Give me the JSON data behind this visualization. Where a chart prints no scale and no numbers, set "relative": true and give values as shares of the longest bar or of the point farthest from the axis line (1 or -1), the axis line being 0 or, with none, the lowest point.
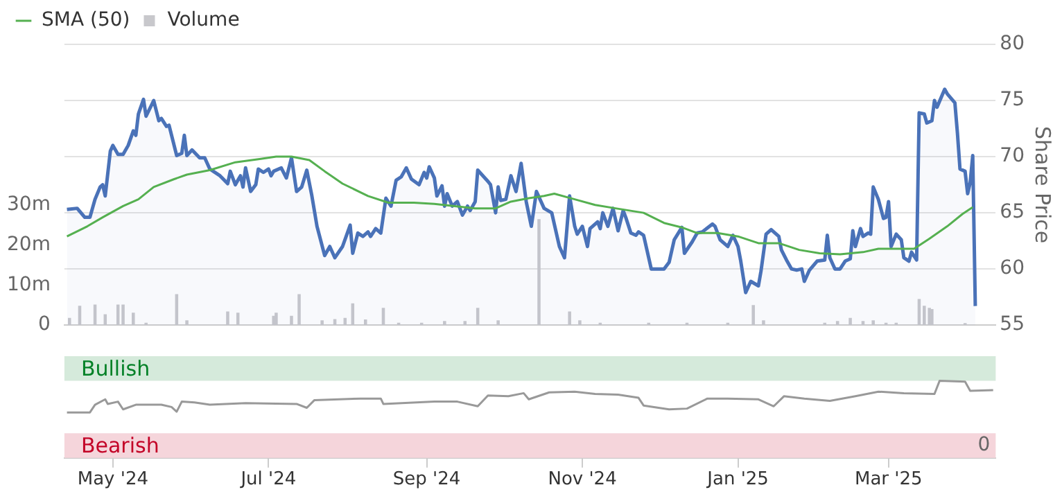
{
  "chart_data": [
    {
      "type": "area",
      "ylabel": "Share Price",
      "legend": "top left",
      "grid": "y",
      "tick_labels": "y",
      "xlim": [
        "2024-04-12",
        "2025-04-12"
      ],
      "ylim": [
        55,
        80
      ],
      "yticks": [
        55,
        60,
        65,
        70,
        75,
        80
      ],
      "y2lim": [
        0,
        70
      ],
      "y2ticks": [
        {
          "value": 0,
          "label": "0"
        },
        {
          "value": 10,
          "label": "10m"
        },
        {
          "value": 20,
          "label": "20m"
        },
        {
          "value": 30,
          "label": "30m"
        }
      ],
      "series": [
        {
          "type": "bar",
          "axis": "y2",
          "name": "Volume",
          "color": "#c8c8cc",
          "x": [
            "2024-04-14",
            "2024-04-18",
            "2024-04-24",
            "2024-04-28",
            "2024-05-03",
            "2024-05-05",
            "2024-05-09",
            "2024-05-14",
            "2024-05-26",
            "2024-05-30",
            "2024-06-15",
            "2024-06-19",
            "2024-07-03",
            "2024-07-04",
            "2024-07-10",
            "2024-07-13",
            "2024-07-22",
            "2024-07-27",
            "2024-07-31",
            "2024-08-03",
            "2024-08-08",
            "2024-08-15",
            "2024-08-21",
            "2024-08-30",
            "2024-09-08",
            "2024-09-16",
            "2024-09-21",
            "2024-09-29",
            "2024-10-15",
            "2024-10-27",
            "2024-10-31",
            "2024-11-08",
            "2024-11-27",
            "2024-12-12",
            "2024-12-28",
            "2025-01-07",
            "2025-01-11",
            "2025-02-04",
            "2025-02-09",
            "2025-02-14",
            "2025-02-19",
            "2025-02-23",
            "2025-02-28",
            "2025-03-04",
            "2025-03-13",
            "2025-03-15",
            "2025-03-17",
            "2025-03-18",
            "2025-03-31"
          ],
          "values": [
            1.7,
            4.7,
            5.0,
            2.6,
            5.0,
            5.0,
            3.0,
            0.5,
            7.6,
            1.1,
            3.3,
            3.0,
            2.2,
            3.0,
            2.2,
            7.6,
            1.1,
            1.4,
            1.7,
            5.3,
            1.3,
            4.2,
            0.5,
            0.5,
            0.9,
            0.9,
            4.2,
            1.1,
            26.3,
            3.3,
            1.1,
            0.5,
            0.5,
            0.5,
            0.5,
            4.9,
            1.1,
            0.5,
            0.9,
            1.7,
            0.9,
            1.1,
            0.5,
            0.5,
            6.4,
            4.7,
            4.2,
            3.9,
            0.4
          ]
        },
        {
          "type": "area",
          "color": "#4a72b8",
          "x": [
            "2024-04-13",
            "2024-04-17",
            "2024-04-20",
            "2024-04-22",
            "2024-04-24",
            "2024-04-26",
            "2024-04-27",
            "2024-04-28",
            "2024-04-30",
            "2024-05-01",
            "2024-05-03",
            "2024-05-05",
            "2024-05-07",
            "2024-05-09",
            "2024-05-10",
            "2024-05-11",
            "2024-05-13",
            "2024-05-14",
            "2024-05-17",
            "2024-05-19",
            "2024-05-20",
            "2024-05-22",
            "2024-05-23",
            "2024-05-26",
            "2024-05-28",
            "2024-05-29",
            "2024-05-30",
            "2024-06-01",
            "2024-06-04",
            "2024-06-06",
            "2024-06-08",
            "2024-06-12",
            "2024-06-15",
            "2024-06-16",
            "2024-06-18",
            "2024-06-20",
            "2024-06-21",
            "2024-06-22",
            "2024-06-24",
            "2024-06-26",
            "2024-06-27",
            "2024-06-29",
            "2024-07-01",
            "2024-07-02",
            "2024-07-03",
            "2024-07-06",
            "2024-07-08",
            "2024-07-10",
            "2024-07-12",
            "2024-07-14",
            "2024-07-16",
            "2024-07-18",
            "2024-07-20",
            "2024-07-23",
            "2024-07-25",
            "2024-07-27",
            "2024-07-30",
            "2024-08-02",
            "2024-08-03",
            "2024-08-05",
            "2024-08-07",
            "2024-08-09",
            "2024-08-10",
            "2024-08-12",
            "2024-08-14",
            "2024-08-16",
            "2024-08-18",
            "2024-08-20",
            "2024-08-22",
            "2024-08-24",
            "2024-08-26",
            "2024-08-29",
            "2024-08-31",
            "2024-09-01",
            "2024-09-02",
            "2024-09-04",
            "2024-09-05",
            "2024-09-07",
            "2024-09-08",
            "2024-09-09",
            "2024-09-11",
            "2024-09-13",
            "2024-09-15",
            "2024-09-17",
            "2024-09-18",
            "2024-09-20",
            "2024-09-21",
            "2024-09-25",
            "2024-09-26",
            "2024-09-28",
            "2024-09-29",
            "2024-09-30",
            "2024-10-02",
            "2024-10-04",
            "2024-10-06",
            "2024-10-08",
            "2024-10-10",
            "2024-10-12",
            "2024-10-14",
            "2024-10-17",
            "2024-10-20",
            "2024-10-23",
            "2024-10-25",
            "2024-10-27",
            "2024-10-29",
            "2024-10-30",
            "2024-11-01",
            "2024-11-03",
            "2024-11-04",
            "2024-11-07",
            "2024-11-08",
            "2024-11-09",
            "2024-11-11",
            "2024-11-13",
            "2024-11-15",
            "2024-11-17",
            "2024-11-18",
            "2024-11-20",
            "2024-11-22",
            "2024-11-23",
            "2024-11-25",
            "2024-11-28",
            "2024-12-03",
            "2024-12-05",
            "2024-12-07",
            "2024-12-10",
            "2024-12-11",
            "2024-12-14",
            "2024-12-16",
            "2024-12-18",
            "2024-12-22",
            "2024-12-23",
            "2024-12-25",
            "2024-12-28",
            "2024-12-30",
            "2025-01-01",
            "2025-01-02",
            "2025-01-04",
            "2025-01-06",
            "2025-01-09",
            "2025-01-10",
            "2025-01-12",
            "2025-01-14",
            "2025-01-17",
            "2025-01-18",
            "2025-01-20",
            "2025-01-22",
            "2025-01-24",
            "2025-01-26",
            "2025-01-27",
            "2025-01-29",
            "2025-02-01",
            "2025-02-04",
            "2025-02-05",
            "2025-02-06",
            "2025-02-08",
            "2025-02-10",
            "2025-02-12",
            "2025-02-14",
            "2025-02-15",
            "2025-02-16",
            "2025-02-18",
            "2025-02-19",
            "2025-02-21",
            "2025-02-22",
            "2025-02-23",
            "2025-02-25",
            "2025-02-27",
            "2025-02-28",
            "2025-03-01",
            "2025-03-02",
            "2025-03-04",
            "2025-03-06",
            "2025-03-07",
            "2025-03-09",
            "2025-03-10",
            "2025-03-12",
            "2025-03-13",
            "2025-03-15",
            "2025-03-16",
            "2025-03-18",
            "2025-03-19",
            "2025-03-20",
            "2025-03-23",
            "2025-03-24",
            "2025-03-27",
            "2025-03-28",
            "2025-03-29",
            "2025-03-31",
            "2025-04-01",
            "2025-04-02",
            "2025-04-03",
            "2025-04-04"
          ],
          "values": [
            65.3,
            65.4,
            64.6,
            64.6,
            66.2,
            67.3,
            67.5,
            66.5,
            70.5,
            71.0,
            70.2,
            70.2,
            71.0,
            72.3,
            71.9,
            73.8,
            75.1,
            73.6,
            75.0,
            73.2,
            73.4,
            72.7,
            72.8,
            70.1,
            70.3,
            71.9,
            70.1,
            70.6,
            69.9,
            69.9,
            68.9,
            68.3,
            67.6,
            68.7,
            67.5,
            68.3,
            67.3,
            69.0,
            66.9,
            67.5,
            68.9,
            68.6,
            68.9,
            68.3,
            68.7,
            69.0,
            68.1,
            69.9,
            66.9,
            67.3,
            68.8,
            66.5,
            63.8,
            61.2,
            62.0,
            61.0,
            62.0,
            63.9,
            61.4,
            63.2,
            62.9,
            63.3,
            62.9,
            63.6,
            63.2,
            66.3,
            65.6,
            67.9,
            68.2,
            69.0,
            68.0,
            67.5,
            68.6,
            68.1,
            69.1,
            68.1,
            66.5,
            67.4,
            65.6,
            66.7,
            65.6,
            66.0,
            64.8,
            65.6,
            65.2,
            66.0,
            68.8,
            67.8,
            67.5,
            65.0,
            67.3,
            66.1,
            66.2,
            68.3,
            66.9,
            69.4,
            66.0,
            63.8,
            66.9,
            65.4,
            65.0,
            62.0,
            61.0,
            66.5,
            63.8,
            63.1,
            63.8,
            62.0,
            63.6,
            64.2,
            63.6,
            65.0,
            63.8,
            65.4,
            63.4,
            65.2,
            64.6,
            63.2,
            63.0,
            63.3,
            63.0,
            60.0,
            60.0,
            60.6,
            62.6,
            63.7,
            61.4,
            62.4,
            63.2,
            63.3,
            64.0,
            63.8,
            62.6,
            62.0,
            63.0,
            62.0,
            60.8,
            57.9,
            58.9,
            58.5,
            59.8,
            63.1,
            63.5,
            62.9,
            61.7,
            60.8,
            60.0,
            59.9,
            60.0,
            58.9,
            59.9,
            60.7,
            60.8,
            63.0,
            61.0,
            60.0,
            60.0,
            60.7,
            60.9,
            63.4,
            62.0,
            63.6,
            62.9,
            63.2,
            63.1,
            67.3,
            66.2,
            64.5,
            64.6,
            66.0,
            62.0,
            63.1,
            62.6,
            61.0,
            60.7,
            61.5,
            60.8,
            73.9,
            73.8,
            73.0,
            73.2,
            75.0,
            74.4,
            76.0,
            75.6,
            74.8,
            72.1,
            68.9,
            68.7,
            66.7,
            67.7,
            70.1,
            56.7
          ]
        },
        {
          "type": "line",
          "name": "SMA (50)",
          "color": "#55b050",
          "x": [
            "2024-04-13",
            "2024-04-21",
            "2024-04-27",
            "2024-05-05",
            "2024-05-11",
            "2024-05-17",
            "2024-05-25",
            "2024-05-30",
            "2024-06-08",
            "2024-06-18",
            "2024-06-28",
            "2024-07-04",
            "2024-07-10",
            "2024-07-17",
            "2024-07-23",
            "2024-07-30",
            "2024-08-09",
            "2024-08-17",
            "2024-08-27",
            "2024-09-04",
            "2024-09-12",
            "2024-09-20",
            "2024-09-28",
            "2024-10-04",
            "2024-10-11",
            "2024-10-17",
            "2024-10-21",
            "2024-10-29",
            "2024-11-06",
            "2024-11-14",
            "2024-11-25",
            "2024-12-03",
            "2024-12-10",
            "2024-12-16",
            "2024-12-24",
            "2025-01-01",
            "2025-01-09",
            "2025-01-17",
            "2025-01-25",
            "2025-02-02",
            "2025-02-10",
            "2025-02-19",
            "2025-02-25",
            "2025-03-04",
            "2025-03-11",
            "2025-03-17",
            "2025-03-24",
            "2025-03-30",
            "2025-04-03"
          ],
          "values": [
            62.9,
            63.8,
            64.6,
            65.6,
            66.2,
            67.3,
            68.0,
            68.4,
            68.8,
            69.5,
            69.8,
            70.0,
            70.0,
            69.7,
            68.7,
            67.6,
            66.5,
            65.9,
            65.9,
            65.8,
            65.6,
            65.4,
            65.4,
            66.0,
            66.3,
            66.5,
            66.7,
            66.2,
            65.7,
            65.4,
            65.0,
            64.1,
            63.7,
            63.2,
            63.2,
            62.9,
            62.3,
            62.3,
            61.7,
            61.4,
            61.3,
            61.5,
            61.8,
            61.8,
            61.8,
            62.7,
            63.8,
            64.9,
            65.5
          ]
        }
      ]
    },
    {
      "type": "line",
      "relative": true,
      "tick_labels": "x",
      "color": "#999999",
      "xlim": [
        "2024-04-12",
        "2025-04-12"
      ],
      "xticks": [
        {
          "value": "2024-05-01",
          "label": "May '24"
        },
        {
          "value": "2024-07-01",
          "label": "Jul '24"
        },
        {
          "value": "2024-09-01",
          "label": "Sep '24"
        },
        {
          "value": "2024-11-01",
          "label": "Nov '24"
        },
        {
          "value": "2025-01-01",
          "label": "Jan '25"
        },
        {
          "value": "2025-03-01",
          "label": "Mar '25"
        }
      ],
      "bands": [
        {
          "axis": "y",
          "from": 1.0,
          "to": 1.32,
          "label": "Bullish",
          "color": "#d5eadb"
        },
        {
          "axis": "y",
          "from": 0,
          "to": 0.32,
          "label": "Bearish",
          "color": "#f5d5db"
        }
      ],
      "annotations": [
        "0"
      ],
      "x": [
        "2024-04-13",
        "2024-04-22",
        "2024-04-24",
        "2024-04-28",
        "2024-04-29",
        "2024-05-03",
        "2024-05-05",
        "2024-05-10",
        "2024-05-20",
        "2024-05-24",
        "2024-05-26",
        "2024-05-28",
        "2024-06-02",
        "2024-06-08",
        "2024-06-22",
        "2024-07-12",
        "2024-07-16",
        "2024-07-19",
        "2024-08-06",
        "2024-08-14",
        "2024-08-15",
        "2024-09-04",
        "2024-09-13",
        "2024-09-21",
        "2024-09-25",
        "2024-10-03",
        "2024-10-09",
        "2024-10-11",
        "2024-10-19",
        "2024-10-29",
        "2024-11-06",
        "2024-11-15",
        "2024-11-23",
        "2024-11-25",
        "2024-12-05",
        "2024-12-12",
        "2024-12-20",
        "2024-12-28",
        "2025-01-09",
        "2025-01-15",
        "2025-01-19",
        "2025-01-27",
        "2025-02-06",
        "2025-02-16",
        "2025-02-25",
        "2025-03-07",
        "2025-03-19",
        "2025-03-21",
        "2025-03-31",
        "2025-04-02",
        "2025-04-11"
      ],
      "values": [
        0.59,
        0.59,
        0.69,
        0.76,
        0.7,
        0.73,
        0.63,
        0.69,
        0.69,
        0.66,
        0.6,
        0.73,
        0.72,
        0.69,
        0.71,
        0.7,
        0.65,
        0.75,
        0.77,
        0.77,
        0.7,
        0.73,
        0.73,
        0.67,
        0.81,
        0.8,
        0.84,
        0.76,
        0.85,
        0.86,
        0.83,
        0.82,
        0.78,
        0.68,
        0.63,
        0.64,
        0.77,
        0.77,
        0.76,
        0.67,
        0.8,
        0.77,
        0.74,
        0.8,
        0.86,
        0.84,
        0.83,
        1.0,
        0.99,
        0.87,
        0.88
      ]
    }
  ]
}
